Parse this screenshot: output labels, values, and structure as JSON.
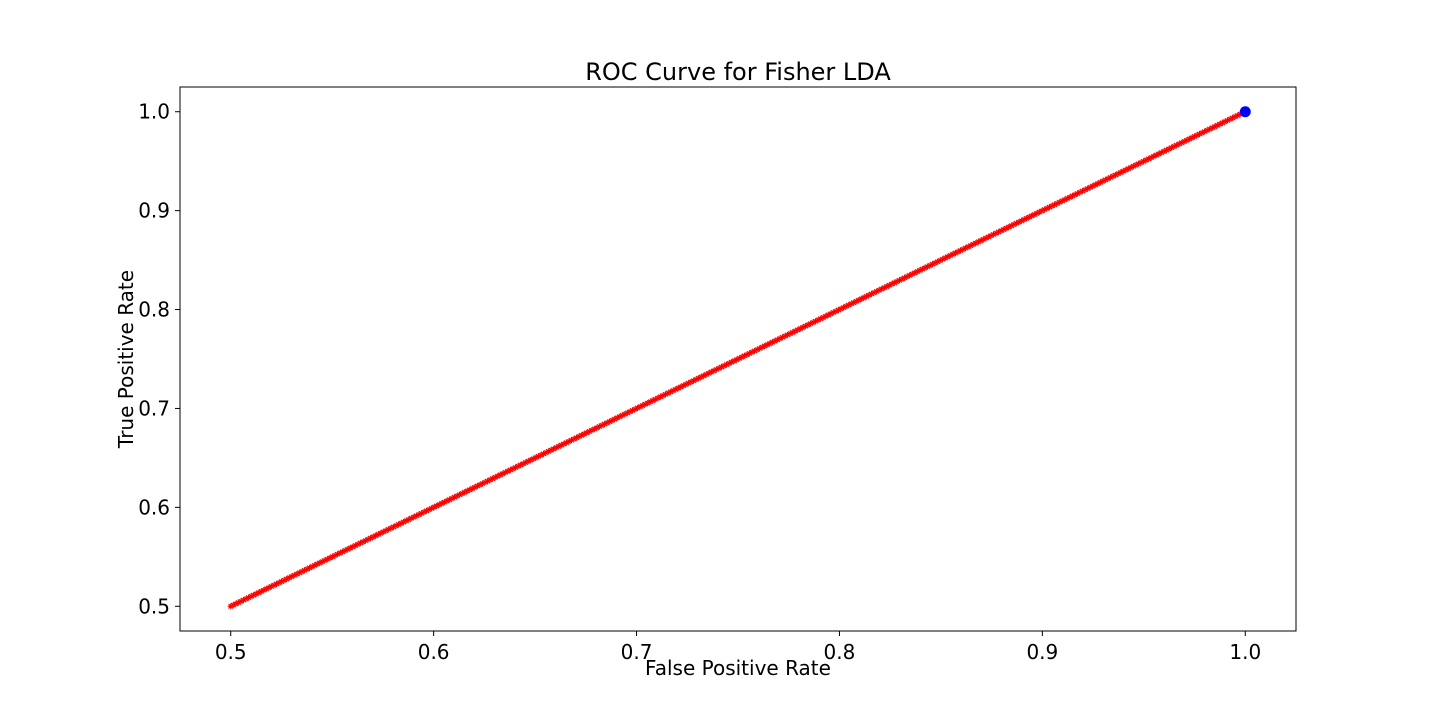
{
  "chart_data": {
    "type": "line",
    "title": "ROC Curve for Fisher LDA",
    "xlabel": "False Positive Rate",
    "ylabel": "True Positive Rate",
    "xlim": [
      0.475,
      1.025
    ],
    "ylim": [
      0.475,
      1.025
    ],
    "xticks": [
      "0.5",
      "0.6",
      "0.7",
      "0.8",
      "0.9",
      "1.0"
    ],
    "yticks": [
      "0.5",
      "0.6",
      "0.7",
      "0.8",
      "0.9",
      "1.0"
    ],
    "grid": false,
    "series": [
      {
        "marker": "star",
        "color": "#ff0000",
        "x_start": 0.5,
        "x_end": 1.0,
        "y_equals_x": true,
        "points": 400
      },
      {
        "marker": "circle",
        "color": "#0000ff",
        "x": [
          1.0
        ],
        "y": [
          1.0
        ]
      }
    ]
  }
}
